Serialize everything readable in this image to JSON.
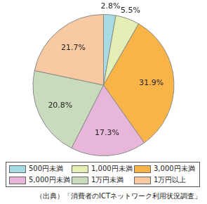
{
  "chart_data": {
    "type": "pie",
    "categories": [
      "500円未満",
      "1,000円未満",
      "3,000円未満",
      "5,000円未満",
      "1万円未満",
      "1万円以上"
    ],
    "values": [
      2.8,
      5.5,
      31.9,
      17.3,
      20.8,
      21.7
    ],
    "value_labels": [
      "2.8%",
      "5.5%",
      "31.9%",
      "17.3%",
      "20.8%",
      "21.7%"
    ],
    "colors": [
      "#a6dbe3",
      "#e3efb4",
      "#f8b446",
      "#e8b6d9",
      "#c9dbbd",
      "#f9c9a2"
    ],
    "data_labels": true,
    "legend": "bottom",
    "source": "（出典）「消費者のICTネットワーク利用状況調査」"
  }
}
